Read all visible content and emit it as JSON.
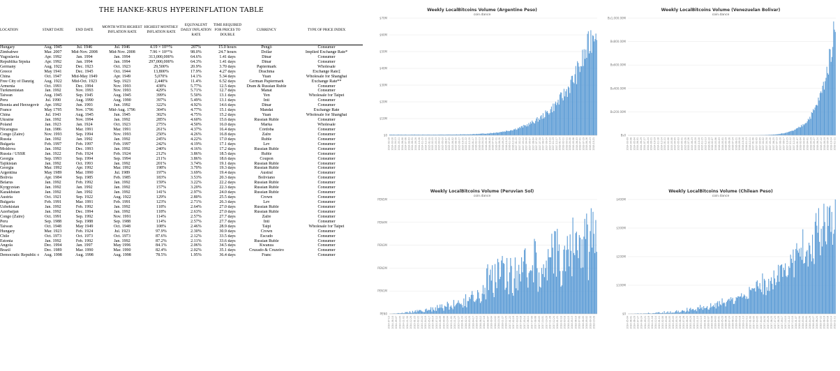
{
  "table": {
    "title": "THE HANKE-KRUS HYPERINFLATION TABLE",
    "headers": [
      "Location",
      "Start Date",
      "End Date",
      "Month With Highest Inflation Rate",
      "Highest Monthly Inflation Rate",
      "Equivalent Daily Inflation Rate",
      "Time Required for Prices to Double",
      "Currency",
      "Type of Price Index"
    ],
    "rows": [
      [
        "Hungary",
        "Aug. 1945",
        "Jul. 1946",
        "Jul. 1946",
        "4.19 × 10¹⁶%",
        "207%",
        "15.0 hours",
        "Pengő",
        "Consumer"
      ],
      [
        "Zimbabwe",
        "Mar. 2007",
        "Mid-Nov. 2008",
        "Mid-Nov. 2008",
        "7.96 × 10¹⁰%",
        "98.0%",
        "24.7 hours",
        "Dollar",
        "Implied Exchange Rate*"
      ],
      [
        "Yugoslavia",
        "Apr. 1992",
        "Jan. 1994",
        "Jan. 1994",
        "313,000,000%",
        "64.6%",
        "1.41 days",
        "Dinar",
        "Consumer"
      ],
      [
        "Republika Srpska",
        "Apr. 1992",
        "Jan. 1994",
        "Jan. 1994",
        "297,000,000%",
        "64.3%",
        "1.41 days",
        "Dinar",
        "Consumer"
      ],
      [
        "Germany",
        "Aug. 1922",
        "Dec. 1923",
        "Oct. 1923",
        "29,500%",
        "20.9%",
        "3.70 days",
        "Papiermark",
        "Wholesale"
      ],
      [
        "Greece",
        "May 1941",
        "Dec. 1945",
        "Oct. 1944",
        "13,800%",
        "17.9%",
        "4.27 days",
        "Drachma",
        "Exchange Rate‡"
      ],
      [
        "China",
        "Oct. 1947",
        "Mid-May 1949",
        "Apr. 1949",
        "5,070%",
        "14.1%",
        "5.34 days",
        "Yuan",
        "Wholesale for Shanghai"
      ],
      [
        "Free City of Danzig",
        "Aug. 1922",
        "Mid-Oct. 1923",
        "Sep. 1923",
        "2,440%",
        "11.4%",
        "6.52 days",
        "German Papiermark",
        "Exchange Rate**"
      ],
      [
        "Armenia",
        "Oct. 1993",
        "Dec. 1994",
        "Nov. 1993",
        "438%",
        "5.77%",
        "12.5 days",
        "Dram & Russian Ruble",
        "Consumer"
      ],
      [
        "Turkmenistan",
        "Jan. 1992",
        "Nov. 1993",
        "Nov. 1993",
        "429%",
        "5.71%",
        "12.7 days",
        "Manat",
        "Consumer"
      ],
      [
        "Taiwan",
        "Aug. 1945",
        "Sep. 1945",
        "Aug. 1945",
        "399%",
        "5.50%",
        "13.1 days",
        "Yen",
        "Wholesale for Taipei"
      ],
      [
        "Peru",
        "Jul. 1990",
        "Aug. 1990",
        "Aug. 1990",
        "397%",
        "5.49%",
        "13.1 days",
        "Inti",
        "Consumer"
      ],
      [
        "Bosnia and Herzegovina",
        "Apr. 1992",
        "Jun. 1993",
        "Jun. 1992",
        "322%",
        "4.92%",
        "14.6 days",
        "Dinar",
        "Consumer"
      ],
      [
        "France",
        "May 1795",
        "Nov. 1796",
        "Mid-Aug. 1796",
        "304%",
        "4.77%",
        "15.1 days",
        "Mandat",
        "Exchange Rate"
      ],
      [
        "China",
        "Jul. 1943",
        "Aug. 1945",
        "Jun. 1945",
        "302%",
        "4.75%",
        "15.2 days",
        "Yuan",
        "Wholesale for Shanghai"
      ],
      [
        "Ukraine",
        "Jan. 1992",
        "Nov. 1994",
        "Jan. 1992",
        "285%",
        "4.60%",
        "15.6 days",
        "Russian Ruble",
        "Consumer"
      ],
      [
        "Poland",
        "Jan. 1923",
        "Jan. 1924",
        "Oct. 1923",
        "275%",
        "4.50%",
        "16.0 days",
        "Marka",
        "Wholesale"
      ],
      [
        "Nicaragua",
        "Jun. 1986",
        "Mar. 1991",
        "Mar. 1991",
        "261%",
        "4.37%",
        "16.4 days",
        "Córdoba",
        "Consumer"
      ],
      [
        "Congo (Zaire)",
        "Nov. 1993",
        "Sep. 1994",
        "Nov. 1993",
        "250%",
        "4.26%",
        "16.8 days",
        "Zaïre",
        "Consumer"
      ],
      [
        "Russia",
        "Jan. 1992",
        "Jan. 1992",
        "Jan. 1992",
        "245%",
        "4.22%",
        "17.0 days",
        "Ruble",
        "Consumer"
      ],
      [
        "Bulgaria",
        "Feb. 1997",
        "Feb. 1997",
        "Feb. 1997",
        "242%",
        "4.19%",
        "17.1 days",
        "Lev",
        "Consumer"
      ],
      [
        "Moldova",
        "Jan. 1992",
        "Dec. 1993",
        "Jan. 1992",
        "240%",
        "4.16%",
        "17.2 days",
        "Russian Ruble",
        "Consumer"
      ],
      [
        "Russia / USSR",
        "Jan. 1922",
        "Feb. 1924",
        "Feb. 1924",
        "212%",
        "3.86%",
        "18.5 days",
        "Ruble",
        "Consumer"
      ],
      [
        "Georgia",
        "Sep. 1993",
        "Sep. 1994",
        "Sep. 1994",
        "211%",
        "3.86%",
        "18.6 days",
        "Coupon",
        "Consumer"
      ],
      [
        "Tajikistan",
        "Jan. 1992",
        "Oct. 1993",
        "Jan. 1992",
        "201%",
        "3.74%",
        "19.1 days",
        "Russian Ruble",
        "Consumer"
      ],
      [
        "Georgia",
        "Mar. 1992",
        "Apr. 1992",
        "Mar. 1992",
        "198%",
        "3.70%",
        "19.3 days",
        "Russian Ruble",
        "Consumer"
      ],
      [
        "Argentina",
        "May 1989",
        "Mar. 1990",
        "Jul. 1989",
        "197%",
        "3.69%",
        "19.4 days",
        "Austral",
        "Consumer"
      ],
      [
        "Bolivia",
        "Apr. 1984",
        "Sep. 1985",
        "Feb. 1985",
        "183%",
        "3.53%",
        "20.3 days",
        "Boliviano",
        "Consumer"
      ],
      [
        "Belarus",
        "Jan. 1992",
        "Feb. 1992",
        "Jan. 1992",
        "159%",
        "3.22%",
        "22.2 days",
        "Russian Ruble",
        "Consumer"
      ],
      [
        "Kyrgyzstan",
        "Jan. 1992",
        "Jan. 1992",
        "Jan. 1992",
        "157%",
        "3.20%",
        "22.3 days",
        "Russian Ruble",
        "Consumer"
      ],
      [
        "Kazakhstan",
        "Jan. 1992",
        "Jan. 1992",
        "Jan. 1992",
        "141%",
        "2.97%",
        "24.0 days",
        "Russian Ruble",
        "Consumer"
      ],
      [
        "Austria",
        "Oct. 1921",
        "Sep. 1922",
        "Aug. 1922",
        "129%",
        "2.80%",
        "25.5 days",
        "Crown",
        "Consumer"
      ],
      [
        "Bulgaria",
        "Feb. 1991",
        "Mar. 1991",
        "Feb. 1991",
        "123%",
        "2.71%",
        "26.3 days",
        "Lev",
        "Consumer"
      ],
      [
        "Uzbekistan",
        "Jan. 1992",
        "Feb. 1992",
        "Jan. 1992",
        "118%",
        "2.64%",
        "27.0 days",
        "Russian Ruble",
        "Consumer"
      ],
      [
        "Azerbaijan",
        "Jan. 1992",
        "Dec. 1994",
        "Jan. 1992",
        "118%",
        "2.63%",
        "27.0 days",
        "Russian Ruble",
        "Consumer"
      ],
      [
        "Congo (Zaire)",
        "Oct. 1991",
        "Sep. 1992",
        "Nov. 1991",
        "114%",
        "2.57%",
        "27.7 days",
        "Zaïre",
        "Consumer"
      ],
      [
        "Peru",
        "Sep. 1988",
        "Sep. 1988",
        "Sep. 1988",
        "114%",
        "2.57%",
        "27.7 days",
        "Inti",
        "Consumer"
      ],
      [
        "Taiwan",
        "Oct. 1948",
        "May 1949",
        "Oct. 1948",
        "108%",
        "2.46%",
        "28.9 days",
        "Taipi",
        "Wholesale for Taipei"
      ],
      [
        "Hungary",
        "Mar. 1923",
        "Feb. 1924",
        "Jul. 1923",
        "97.9%",
        "2.30%",
        "30.9 days",
        "Crown",
        "Consumer"
      ],
      [
        "Chile",
        "Oct. 1973",
        "Oct. 1973",
        "Oct. 1973",
        "87.6%",
        "2.12%",
        "33.5 days",
        "Escudo",
        "Consumer"
      ],
      [
        "Estonia",
        "Jan. 1992",
        "Feb. 1992",
        "Jan. 1992",
        "87.2%",
        "2.11%",
        "33.6 days",
        "Russian Ruble",
        "Consumer"
      ],
      [
        "Angola",
        "Dec. 1994",
        "Jan. 1997",
        "May 1996",
        "84.1%",
        "2.06%",
        "34.5 days",
        "Kwanza",
        "Consumer"
      ],
      [
        "Brazil",
        "Dec. 1989",
        "Mar. 1990",
        "Mar. 1990",
        "82.4%",
        "2.02%",
        "35.1 days",
        "Cruzado & Cruzeiro",
        "Consumer"
      ],
      [
        "Democratic Republic of Congo",
        "Aug. 1998",
        "Aug. 1998",
        "Aug. 1998",
        "78.5%",
        "1.95%",
        "36.4 days",
        "Franc",
        "Consumer"
      ]
    ]
  },
  "chart_data": [
    {
      "type": "bar",
      "title": "Weekly LocalBitcoins Volume (Argentine Peso)",
      "subtitle": "coin.dance",
      "yticks": [
        "$0",
        "$10M",
        "$20M",
        "$30M",
        "$40M",
        "$50M",
        "$60M",
        "$70M"
      ],
      "ylim": [
        0,
        70
      ],
      "x_range": [
        "2014-02-16",
        "2018-11-11"
      ],
      "weeks": 248,
      "shape": {
        "base": 0.4,
        "growth": 6.0,
        "peak": 68,
        "noise": 0.35
      }
    },
    {
      "type": "bar",
      "title": "Weekly LocalBitcoins Volume (Venezuelan Bolivar)",
      "subtitle": "coin.dance",
      "yticks": [
        "Bs0",
        "Bs200.00M",
        "Bs400.00M",
        "Bs600.00M",
        "Bs800.00M",
        "Bs1,000.00M"
      ],
      "ylim": [
        0,
        1000
      ],
      "x_range": [
        "2014-03-09",
        "2018-11-11"
      ],
      "weeks": 245,
      "shape": {
        "base": 0.0,
        "growth": 14.0,
        "peak": 970,
        "noise": 0.3
      }
    },
    {
      "type": "bar",
      "title": "Weekly LocalBitcoins Volume (Peruvian Sol)",
      "subtitle": "coin.dance",
      "yticks": [
        "PEN0",
        "PEN1M",
        "PEN2M",
        "PEN3M",
        "PEN4M",
        "PEN5M"
      ],
      "ylim": [
        0,
        5
      ],
      "x_range": [
        "2014-07-13",
        "2018-11-11"
      ],
      "weeks": 227,
      "shape": {
        "base": 0.05,
        "growth": 3.0,
        "peak": 4.0,
        "noise": 0.55
      }
    },
    {
      "type": "bar",
      "title": "Weekly LocalBitcoins Volume (Chilean Peso)",
      "subtitle": "coin.dance",
      "yticks": [
        "$0",
        "$100M",
        "$200M",
        "$300M",
        "$400M"
      ],
      "ylim": [
        0,
        400
      ],
      "x_range": [
        "2014-05-04",
        "2018-11-11"
      ],
      "weeks": 237,
      "shape": {
        "base": 2,
        "growth": 3.2,
        "peak": 390,
        "noise": 0.45
      }
    }
  ]
}
